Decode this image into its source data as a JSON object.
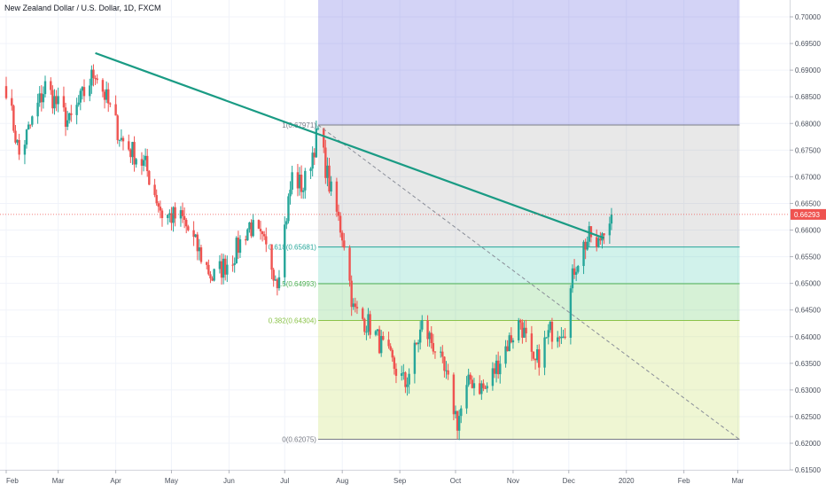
{
  "header": {
    "title": "New Zealand Dollar / U.S. Dollar, 1D, FXCM"
  },
  "colors": {
    "up": "#26a69a",
    "down": "#ef5350",
    "trendline": "#1a9b84",
    "price_line": "#ef5350",
    "price_badge": "#ef5350",
    "grid": "#f0f3fa",
    "axis_text": "#4c525e"
  },
  "chart_data": {
    "type": "candlestick",
    "title": "New Zealand Dollar / U.S. Dollar, 1D, FXCM",
    "x_labels": [
      "Feb",
      "Mar",
      "Apr",
      "May",
      "Jun",
      "Jul",
      "Aug",
      "Sep",
      "Oct",
      "Nov",
      "Dec",
      "2020",
      "Feb",
      "Mar"
    ],
    "y_ticks": [
      "0.70000",
      "0.69500",
      "0.69000",
      "0.68500",
      "0.68000",
      "0.67500",
      "0.67000",
      "0.66500",
      "0.66000",
      "0.65500",
      "0.65000",
      "0.64500",
      "0.64000",
      "0.63500",
      "0.63000",
      "0.62500",
      "0.62000",
      "0.61500"
    ],
    "ylim": [
      0.6135,
      0.7035
    ],
    "last_price": "0.66293",
    "last_price_value": 0.66293,
    "fib_levels": [
      {
        "ratio": "1",
        "label": "1(0.67971)",
        "value": 0.67971
      },
      {
        "ratio": "0.618",
        "label": "0.618(0.65681)",
        "value": 0.65681
      },
      {
        "ratio": "0.5",
        "label": "0.5(0.64993)",
        "value": 0.64993
      },
      {
        "ratio": "0.382",
        "label": "0.382(0.64304)",
        "value": 0.64304
      },
      {
        "ratio": "0",
        "label": "0(0.62075)",
        "value": 0.62075
      }
    ],
    "trendline": {
      "start": {
        "date": "2019-03-21",
        "price": 0.6932
      },
      "end": {
        "date": "2019-12-20",
        "price": 0.6585
      }
    },
    "dashed_line": {
      "start": {
        "date": "2019-07-19",
        "price": 0.6797
      },
      "end": {
        "date": "2020-03-02",
        "price": 0.6207
      }
    },
    "fib_range": {
      "start_date": "2019-07-19",
      "end_date": "2020-03-02"
    },
    "anchors": [
      {
        "date": "2019-02-01",
        "price": 0.687
      },
      {
        "date": "2019-02-08",
        "price": 0.674
      },
      {
        "date": "2019-02-22",
        "price": 0.687
      },
      {
        "date": "2019-03-07",
        "price": 0.68
      },
      {
        "date": "2019-03-21",
        "price": 0.69
      },
      {
        "date": "2019-04-04",
        "price": 0.677
      },
      {
        "date": "2019-04-17",
        "price": 0.672
      },
      {
        "date": "2019-04-26",
        "price": 0.663
      },
      {
        "date": "2019-05-07",
        "price": 0.662
      },
      {
        "date": "2019-05-23",
        "price": 0.651
      },
      {
        "date": "2019-06-03",
        "price": 0.655
      },
      {
        "date": "2019-06-12",
        "price": 0.661
      },
      {
        "date": "2019-06-20",
        "price": 0.657
      },
      {
        "date": "2019-06-27",
        "price": 0.651
      },
      {
        "date": "2019-07-05",
        "price": 0.67
      },
      {
        "date": "2019-07-11",
        "price": 0.668
      },
      {
        "date": "2019-07-19",
        "price": 0.6785
      },
      {
        "date": "2019-07-26",
        "price": 0.667
      },
      {
        "date": "2019-08-02",
        "price": 0.658
      },
      {
        "date": "2019-08-07",
        "price": 0.645
      },
      {
        "date": "2019-08-16",
        "price": 0.642
      },
      {
        "date": "2019-08-26",
        "price": 0.636
      },
      {
        "date": "2019-09-04",
        "price": 0.631
      },
      {
        "date": "2019-09-13",
        "price": 0.642
      },
      {
        "date": "2019-09-20",
        "price": 0.638
      },
      {
        "date": "2019-09-27",
        "price": 0.631
      },
      {
        "date": "2019-10-02",
        "price": 0.624
      },
      {
        "date": "2019-10-09",
        "price": 0.632
      },
      {
        "date": "2019-10-17",
        "price": 0.63
      },
      {
        "date": "2019-10-28",
        "price": 0.638
      },
      {
        "date": "2019-11-05",
        "price": 0.643
      },
      {
        "date": "2019-11-12",
        "price": 0.634
      },
      {
        "date": "2019-11-21",
        "price": 0.641
      },
      {
        "date": "2019-11-29",
        "price": 0.642
      },
      {
        "date": "2019-12-04",
        "price": 0.653
      },
      {
        "date": "2019-12-09",
        "price": 0.657
      },
      {
        "date": "2019-12-13",
        "price": 0.659
      },
      {
        "date": "2019-12-16",
        "price": 0.656
      },
      {
        "date": "2019-12-20",
        "price": 0.661
      },
      {
        "date": "2019-12-24",
        "price": 0.6629
      }
    ]
  }
}
